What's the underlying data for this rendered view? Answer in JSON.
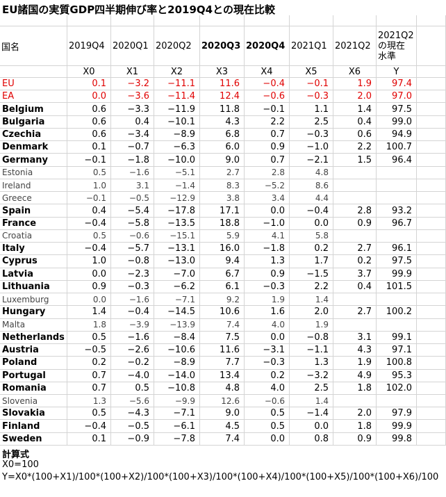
{
  "title": "EU諸国の実質GDP四半期伸び率と2019Q4との現在比較",
  "table": {
    "header": [
      "国名",
      "2019Q4",
      "2020Q1",
      "2020Q2",
      "2020Q3",
      "2020Q4",
      "2021Q1",
      "2021Q2",
      [
        "2021Q2",
        "の現在",
        "水準"
      ]
    ],
    "variables": [
      "X0",
      "X1",
      "X2",
      "X3",
      "X4",
      "X5",
      "X6",
      "Y"
    ],
    "rows": [
      {
        "name": "EU",
        "color": "#e00000",
        "values": [
          "0.1",
          "−3.2",
          "−11.1",
          "11.6",
          "−0.4",
          "−0.1",
          "1.9",
          "97.4"
        ]
      },
      {
        "name": "EA",
        "color": "#e00000",
        "values": [
          "0.0",
          "−3.6",
          "−11.4",
          "12.4",
          "−0.6",
          "−0.3",
          "2.0",
          "97.0"
        ]
      },
      {
        "name": "Belgium",
        "values": [
          "0.6",
          "−3.3",
          "−11.9",
          "11.8",
          "−0.1",
          "1.1",
          "1.4",
          "97.5"
        ]
      },
      {
        "name": "Bulgaria",
        "values": [
          "0.6",
          "0.4",
          "−10.1",
          "4.3",
          "2.2",
          "2.5",
          "0.4",
          "99.0"
        ]
      },
      {
        "name": "Czechia",
        "values": [
          "0.6",
          "−3.4",
          "−8.9",
          "6.8",
          "0.7",
          "−0.3",
          "0.6",
          "94.9"
        ]
      },
      {
        "name": "Denmark",
        "values": [
          "0.1",
          "−0.7",
          "−6.3",
          "6.0",
          "0.9",
          "−1.0",
          "2.2",
          "100.7"
        ]
      },
      {
        "name": "Germany",
        "values": [
          "−0.1",
          "−1.8",
          "−10.0",
          "9.0",
          "0.7",
          "−2.1",
          "1.5",
          "96.4"
        ]
      },
      {
        "name": "Estonia",
        "light": true,
        "values": [
          "0.5",
          "−1.6",
          "−5.1",
          "2.7",
          "2.8",
          "4.8"
        ]
      },
      {
        "name": "Ireland",
        "light": true,
        "values": [
          "1.0",
          "3.1",
          "−1.4",
          "8.3",
          "−5.2",
          "8.6"
        ]
      },
      {
        "name": "Greece",
        "light": true,
        "values": [
          "−0.1",
          "−0.5",
          "−12.9",
          "3.8",
          "3.4",
          "4.4"
        ]
      },
      {
        "name": "Spain",
        "values": [
          "0.4",
          "−5.4",
          "−17.8",
          "17.1",
          "0.0",
          "−0.4",
          "2.8",
          "93.2"
        ]
      },
      {
        "name": "France",
        "values": [
          "−0.4",
          "−5.8",
          "−13.5",
          "18.8",
          "−1.0",
          "0.0",
          "0.9",
          "96.7"
        ]
      },
      {
        "name": "Croatia",
        "light": true,
        "values": [
          "0.5",
          "−0.6",
          "−15.1",
          "5.9",
          "4.1",
          "5.8"
        ]
      },
      {
        "name": "Italy",
        "values": [
          "−0.4",
          "−5.7",
          "−13.1",
          "16.0",
          "−1.8",
          "0.2",
          "2.7",
          "96.1"
        ]
      },
      {
        "name": "Cyprus",
        "values": [
          "1.0",
          "−0.8",
          "−13.0",
          "9.4",
          "1.3",
          "1.7",
          "0.2",
          "97.5"
        ]
      },
      {
        "name": "Latvia",
        "values": [
          "0.0",
          "−2.3",
          "−7.0",
          "6.7",
          "0.9",
          "−1.5",
          "3.7",
          "99.9"
        ]
      },
      {
        "name": "Lithuania",
        "values": [
          "0.9",
          "−0.3",
          "−6.2",
          "6.1",
          "−0.3",
          "2.2",
          "0.4",
          "101.5"
        ]
      },
      {
        "name": "Luxemburg",
        "light": true,
        "values": [
          "0.0",
          "−1.6",
          "−7.1",
          "9.2",
          "1.9",
          "1.4"
        ]
      },
      {
        "name": "Hungary",
        "values": [
          "1.4",
          "−0.4",
          "−14.5",
          "10.6",
          "1.6",
          "2.0",
          "2.7",
          "100.2"
        ]
      },
      {
        "name": "Malta",
        "light": true,
        "values": [
          "1.8",
          "−3.9",
          "−13.9",
          "7.4",
          "4.0",
          "1.9"
        ]
      },
      {
        "name": "Netherlands",
        "values": [
          "0.5",
          "−1.6",
          "−8.4",
          "7.5",
          "0.0",
          "−0.8",
          "3.1",
          "99.1"
        ]
      },
      {
        "name": "Austria",
        "values": [
          "−0.5",
          "−2.6",
          "−10.6",
          "11.6",
          "−3.1",
          "−1.1",
          "4.3",
          "97.1"
        ]
      },
      {
        "name": "Poland",
        "values": [
          "0.2",
          "−0.2",
          "−8.9",
          "7.7",
          "−0.3",
          "1.3",
          "1.9",
          "100.8"
        ]
      },
      {
        "name": "Portugal",
        "values": [
          "0.7",
          "−4.0",
          "−14.0",
          "13.4",
          "0.2",
          "−3.2",
          "4.9",
          "95.3"
        ]
      },
      {
        "name": "Romania",
        "values": [
          "0.7",
          "0.5",
          "−10.8",
          "4.8",
          "4.0",
          "2.5",
          "1.8",
          "102.0"
        ]
      },
      {
        "name": "Slovenia",
        "light": true,
        "values": [
          "1.3",
          "−5.6",
          "−9.9",
          "12.6",
          "−0.6",
          "1.4"
        ]
      },
      {
        "name": "Slovakia",
        "values": [
          "0.5",
          "−4.3",
          "−7.1",
          "9.0",
          "0.5",
          "−1.4",
          "2.0",
          "97.9"
        ]
      },
      {
        "name": "Finland",
        "values": [
          "−0.4",
          "−0.5",
          "−6.1",
          "4.5",
          "0.5",
          "0.0",
          "1.8",
          "99.9"
        ]
      },
      {
        "name": "Sweden",
        "values": [
          "0.1",
          "−0.9",
          "−7.8",
          "7.4",
          "0.0",
          "0.8",
          "0.9",
          "99.8"
        ]
      }
    ]
  },
  "footer": [
    "計算式",
    "X0=100",
    "Y=X0*(100+X1)/100*(100+X2)/100*(100+X3)/100*(100+X4)/100*(100+X5)/100*(100+X6)/100"
  ]
}
